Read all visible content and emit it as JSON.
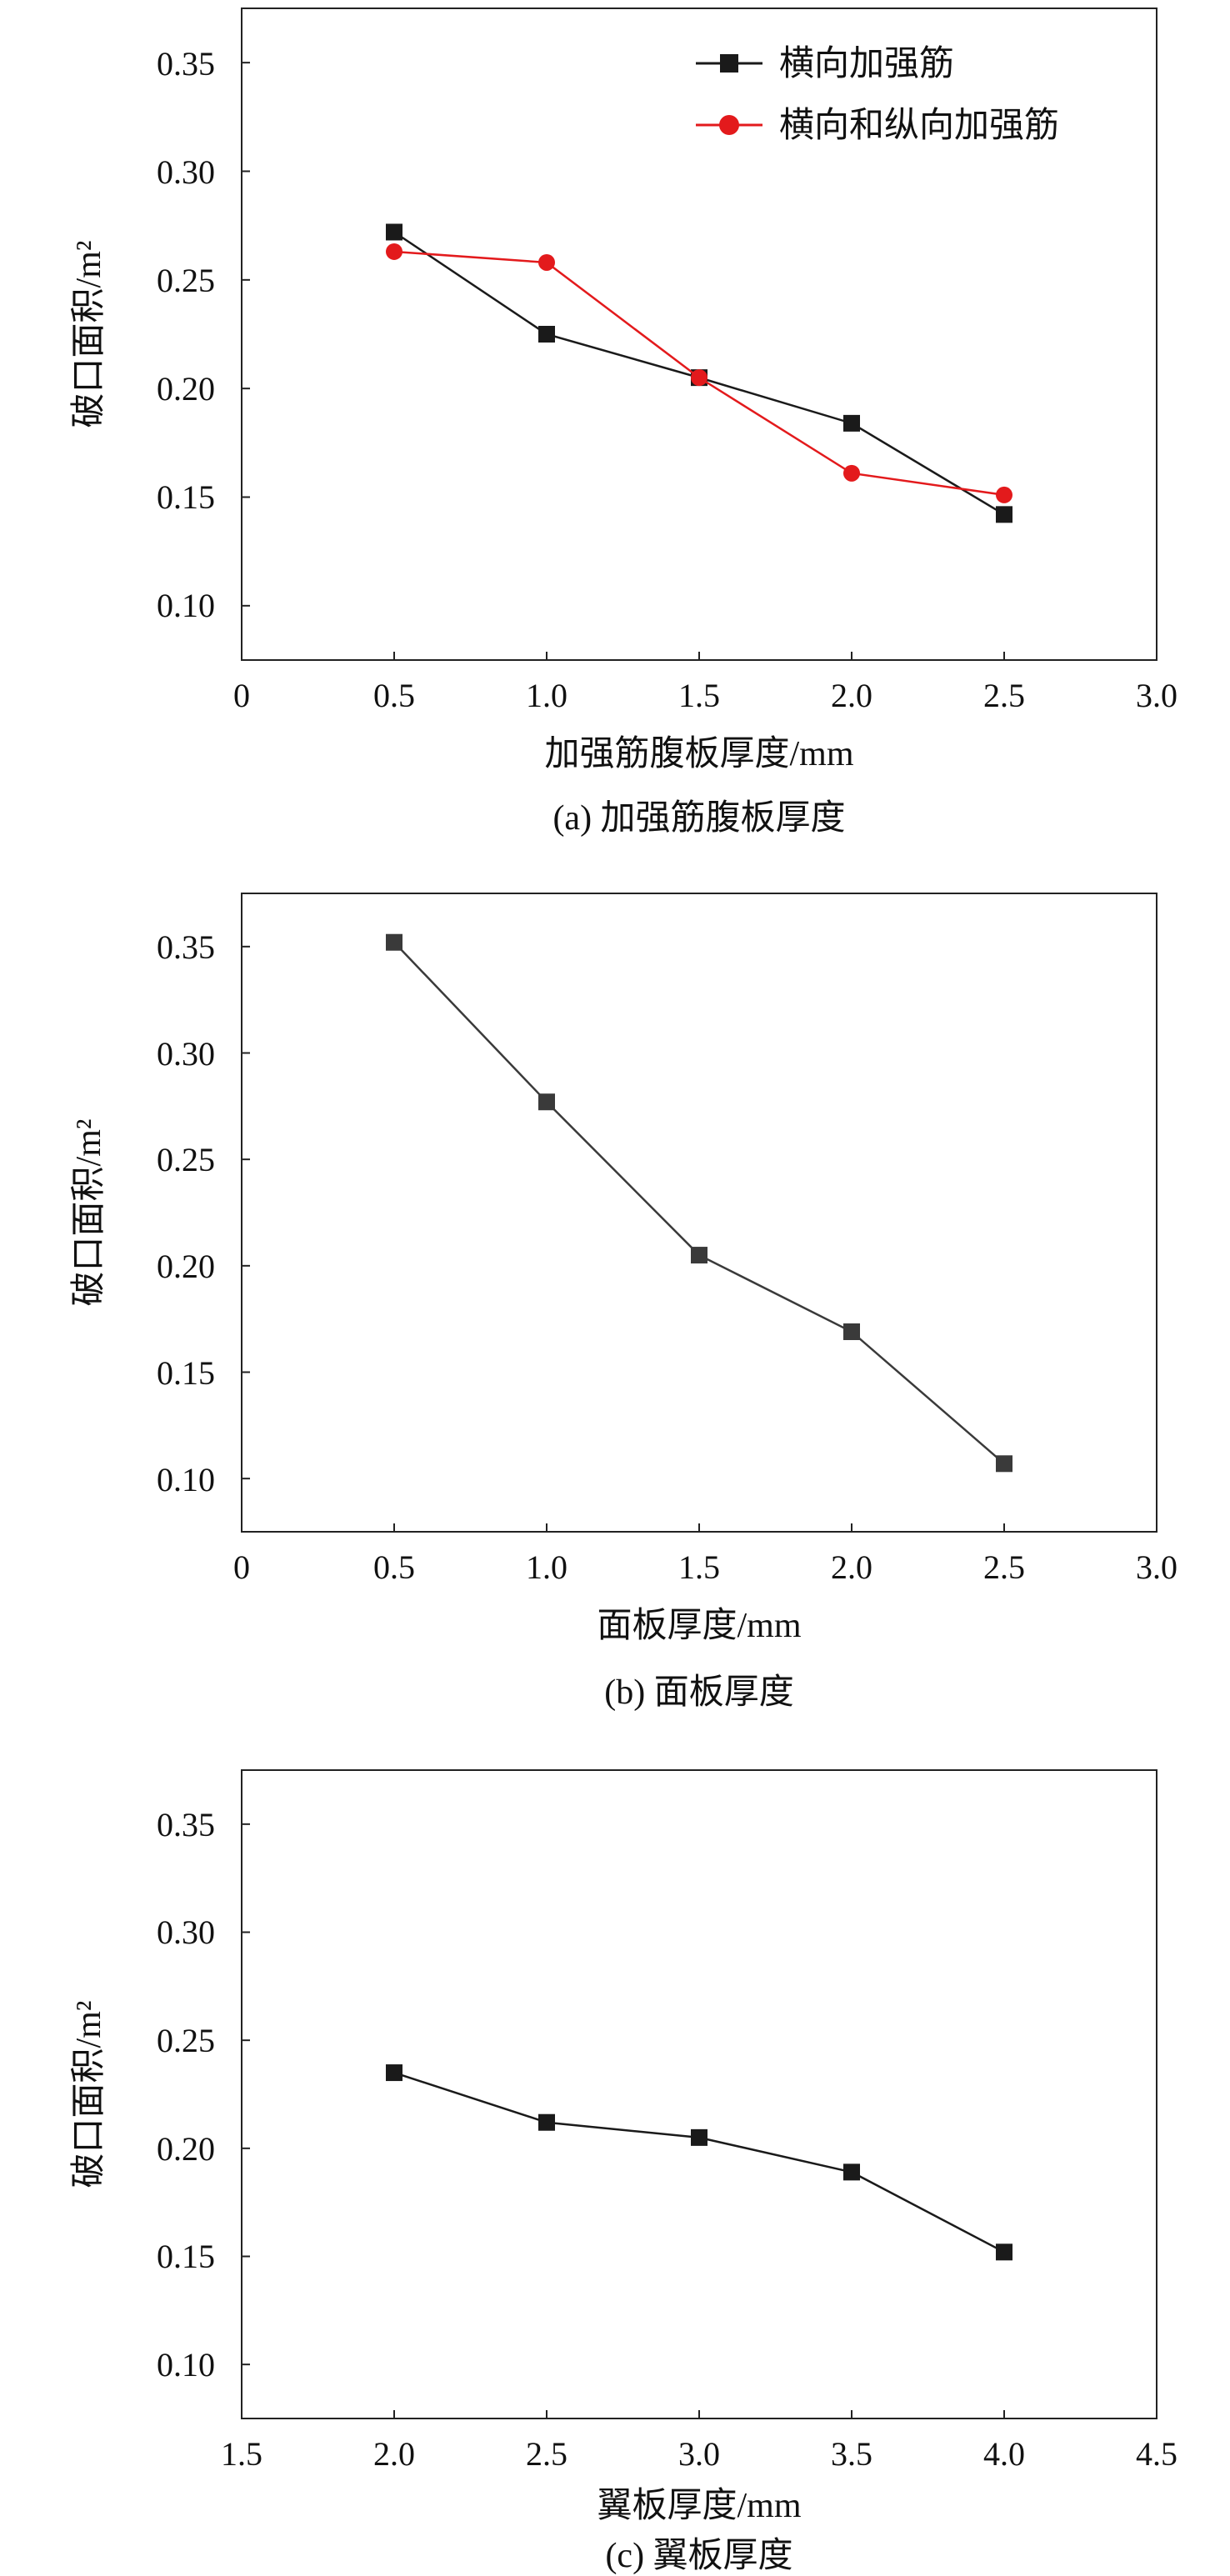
{
  "chart_data": [
    {
      "type": "line",
      "caption": "(a) 加强筋腹板厚度",
      "xlabel": "加强筋腹板厚度/mm",
      "ylabel": "破口面积/m²",
      "xlim": [
        0,
        3.0
      ],
      "ylim": [
        0.075,
        0.375
      ],
      "xticks": [
        "0",
        "0.5",
        "1.0",
        "1.5",
        "2.0",
        "2.5",
        "3.0"
      ],
      "yticks": [
        "0.10",
        "0.15",
        "0.20",
        "0.25",
        "0.30",
        "0.35"
      ],
      "legend_position": "top-right",
      "grid": false,
      "series": [
        {
          "name": "横向加强筋",
          "color": "#1a1a1a",
          "marker": "square",
          "x": [
            0.5,
            1.0,
            1.5,
            2.0,
            2.5
          ],
          "y": [
            0.272,
            0.225,
            0.205,
            0.184,
            0.142
          ]
        },
        {
          "name": "横向和纵向加强筋",
          "color": "#e31a1c",
          "marker": "circle",
          "x": [
            0.5,
            1.0,
            1.5,
            2.0,
            2.5
          ],
          "y": [
            0.263,
            0.258,
            0.205,
            0.161,
            0.151
          ]
        }
      ]
    },
    {
      "type": "line",
      "caption": "(b) 面板厚度",
      "xlabel": "面板厚度/mm",
      "ylabel": "破口面积/m²",
      "xlim": [
        0,
        3.0
      ],
      "ylim": [
        0.075,
        0.375
      ],
      "xticks": [
        "0",
        "0.5",
        "1.0",
        "1.5",
        "2.0",
        "2.5",
        "3.0"
      ],
      "yticks": [
        "0.10",
        "0.15",
        "0.20",
        "0.25",
        "0.30",
        "0.35"
      ],
      "grid": false,
      "series": [
        {
          "color": "#3a3a3a",
          "marker": "square",
          "x": [
            0.5,
            1.0,
            1.5,
            2.0,
            2.5
          ],
          "y": [
            0.352,
            0.277,
            0.205,
            0.169,
            0.107
          ]
        }
      ]
    },
    {
      "type": "line",
      "caption": "(c) 翼板厚度",
      "xlabel": "翼板厚度/mm",
      "ylabel": "破口面积/m²",
      "xlim": [
        1.5,
        4.5
      ],
      "ylim": [
        0.075,
        0.375
      ],
      "xticks": [
        "1.5",
        "2.0",
        "2.5",
        "3.0",
        "3.5",
        "4.0",
        "4.5"
      ],
      "yticks": [
        "0.10",
        "0.15",
        "0.20",
        "0.25",
        "0.30",
        "0.35"
      ],
      "grid": false,
      "series": [
        {
          "color": "#1a1a1a",
          "marker": "square",
          "x": [
            2.0,
            2.5,
            3.0,
            3.5,
            4.0
          ],
          "y": [
            0.235,
            0.212,
            0.205,
            0.189,
            0.152
          ]
        }
      ]
    }
  ]
}
